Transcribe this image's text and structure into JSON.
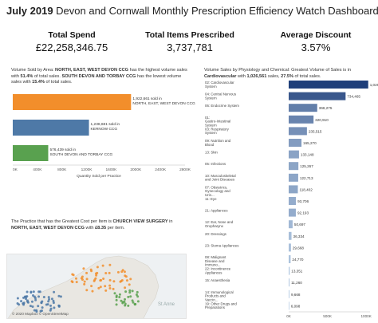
{
  "header": {
    "title_bold": "July 2019",
    "title_rest": " Devon and Cornwall Monthly Prescription Efficiency Watch Dashboard"
  },
  "kpis": [
    {
      "label": "Total Spend",
      "value": "£22,258,346.75"
    },
    {
      "label": "Total Items Prescribed",
      "value": "3,737,781"
    },
    {
      "label": "Average Discount",
      "value": "3.57%"
    }
  ],
  "area_panel": {
    "p1": "Volume Sold by Area: ",
    "p1_bold": "NORTH, EAST, WEST DEVON CCG",
    "p2": " has the highest volume sales with ",
    "p2_bold": "51.4%",
    "p3": " of total sales. ",
    "p3_bold": "SOUTH DEVON AND TORBAY CCG",
    "p4": " has the lowest volume sales with ",
    "p4_bold": "15.4%",
    "p5": " of total sales."
  },
  "practice_panel": {
    "p1": "The Practice that has the Greatest Cost per Item is ",
    "p1_bold": "CHURCH VIEW SURGERY",
    "p2": " in ",
    "p2_bold": "NORTH, EAST, WEST DEVON CCG",
    "p3": " with ",
    "p3_bold": "£8.35",
    "p4": " per item.",
    "map_credit": "© 2020 Mapbox © OpenStreetMap",
    "map_place": "St Anne"
  },
  "category_panel": {
    "p1": "Volume Sales by Physiology and Chemical: Greatest Volume of Sales is in ",
    "p1_bold": "Cardiovascular",
    "p2": " with ",
    "p2_bold": "1,026,561",
    "p3": " sales, ",
    "p3_bold": "27.5%",
    "p4": " of total sales."
  },
  "chart_data": [
    {
      "type": "bar",
      "orientation": "horizontal",
      "xlabel": "Quantity Sold per Practice",
      "xlim": [
        0,
        2800000
      ],
      "xticks": [
        "0K",
        "400K",
        "800K",
        "1200K",
        "1600K",
        "2000K",
        "2400K",
        "2800K"
      ],
      "bars": [
        {
          "line1": "1,922,661 sold in",
          "line2": "NORTH, EAST, WEST DEVON CCG",
          "value": 1922661,
          "color": "#f28e2b"
        },
        {
          "line1": "1,238,681 sold in",
          "line2": "KERNOW CCG",
          "value": 1238681,
          "color": "#4e79a7"
        },
        {
          "line1": "576,439 sold in",
          "line2": "SOUTH DEVON AND TORBAY CCG",
          "value": 576439,
          "color": "#59a14f"
        }
      ]
    },
    {
      "type": "bar",
      "orientation": "horizontal",
      "xlim": [
        0,
        1050000
      ],
      "xticks": [
        "0K",
        "500K",
        "1000K"
      ],
      "categories": [
        "02: Cardiovascular System",
        "04: Central Nervous System",
        "06: Endocrine System",
        "01: Gastro-Intestinal System",
        "03: Respiratory System",
        "09: Nutrition and Blood",
        "13: Skin",
        "05: Infections",
        "10: Musculoskeletal and Joint Diseases",
        "07: Obstetrics, Gynecology and Urin...",
        "11: Eye",
        "21: Appliances",
        "12: Ear, Nose and Oropharynx",
        "20: Dressings",
        "23: Stoma Appliances",
        "08: Malignant Disease and Immuno...",
        "22: Incontinence Appliances",
        "15: Anaesthesia",
        "14: Immunological Products and Vaccin...",
        "19: Other Drugs and Preparations"
      ],
      "values": [
        1026561,
        734465,
        368275,
        320910,
        235515,
        165270,
        133148,
        125267,
        122713,
        118402,
        93706,
        92193,
        50697,
        36334,
        29668,
        24770,
        13351,
        11260,
        9668,
        6098
      ],
      "labels": [
        "1,026,561",
        "734,465",
        "368,275",
        "320,910",
        "235,515",
        "165,270",
        "133,148",
        "125,267",
        "122,713",
        "118,402",
        "93,706",
        "92,193",
        "50,697",
        "36,334",
        "29,668",
        "24,770",
        "13,351",
        "11,260",
        "9,668",
        "6,098"
      ]
    }
  ]
}
